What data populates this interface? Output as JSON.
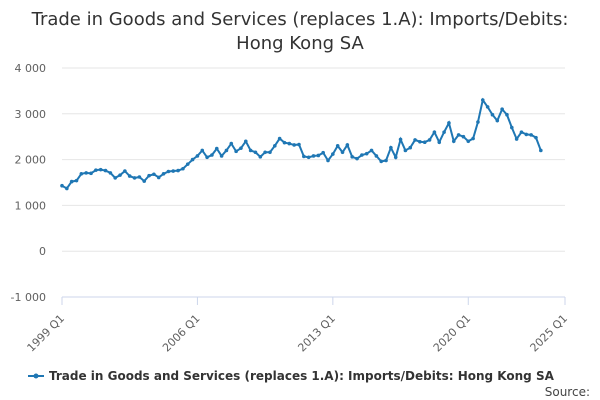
{
  "chart_data": {
    "type": "line",
    "title_line1": "Trade in Goods and Services (replaces 1.A): Imports/Debits:",
    "title_line2": "Hong Kong SA",
    "x_ticks": [
      "1999 Q1",
      "2006 Q1",
      "2013 Q1",
      "2020 Q1",
      "2025 Q1"
    ],
    "y_ticks": [
      "4 000",
      "3 000",
      "2 000",
      "1 000",
      "0",
      "-1 000"
    ],
    "ylim": [
      -1000,
      4000
    ],
    "xlim": [
      "1999 Q1",
      "2025 Q1"
    ],
    "grid": true,
    "legend_position": "bottom",
    "source_label": "Source:",
    "color": "#1f77b4",
    "series": [
      {
        "name": "Trade in Goods and Services (replaces 1.A): Imports/Debits: Hong Kong SA",
        "start": "1999 Q1",
        "frequency": "quarterly",
        "values": [
          1430,
          1370,
          1520,
          1540,
          1690,
          1710,
          1700,
          1770,
          1780,
          1760,
          1710,
          1600,
          1660,
          1750,
          1640,
          1600,
          1620,
          1530,
          1650,
          1680,
          1610,
          1690,
          1740,
          1750,
          1760,
          1800,
          1900,
          2000,
          2080,
          2200,
          2050,
          2100,
          2240,
          2080,
          2200,
          2350,
          2180,
          2250,
          2400,
          2200,
          2160,
          2060,
          2160,
          2160,
          2300,
          2460,
          2370,
          2350,
          2320,
          2330,
          2070,
          2050,
          2080,
          2090,
          2150,
          1980,
          2120,
          2300,
          2160,
          2320,
          2060,
          2020,
          2100,
          2130,
          2200,
          2080,
          1960,
          1980,
          2260,
          2050,
          2440,
          2200,
          2260,
          2430,
          2390,
          2380,
          2430,
          2600,
          2380,
          2600,
          2800,
          2400,
          2540,
          2500,
          2400,
          2460,
          2820,
          3300,
          3150,
          2980,
          2850,
          3100,
          2980,
          2700,
          2450,
          2600,
          2550,
          2540,
          2480,
          2200
        ]
      }
    ]
  }
}
